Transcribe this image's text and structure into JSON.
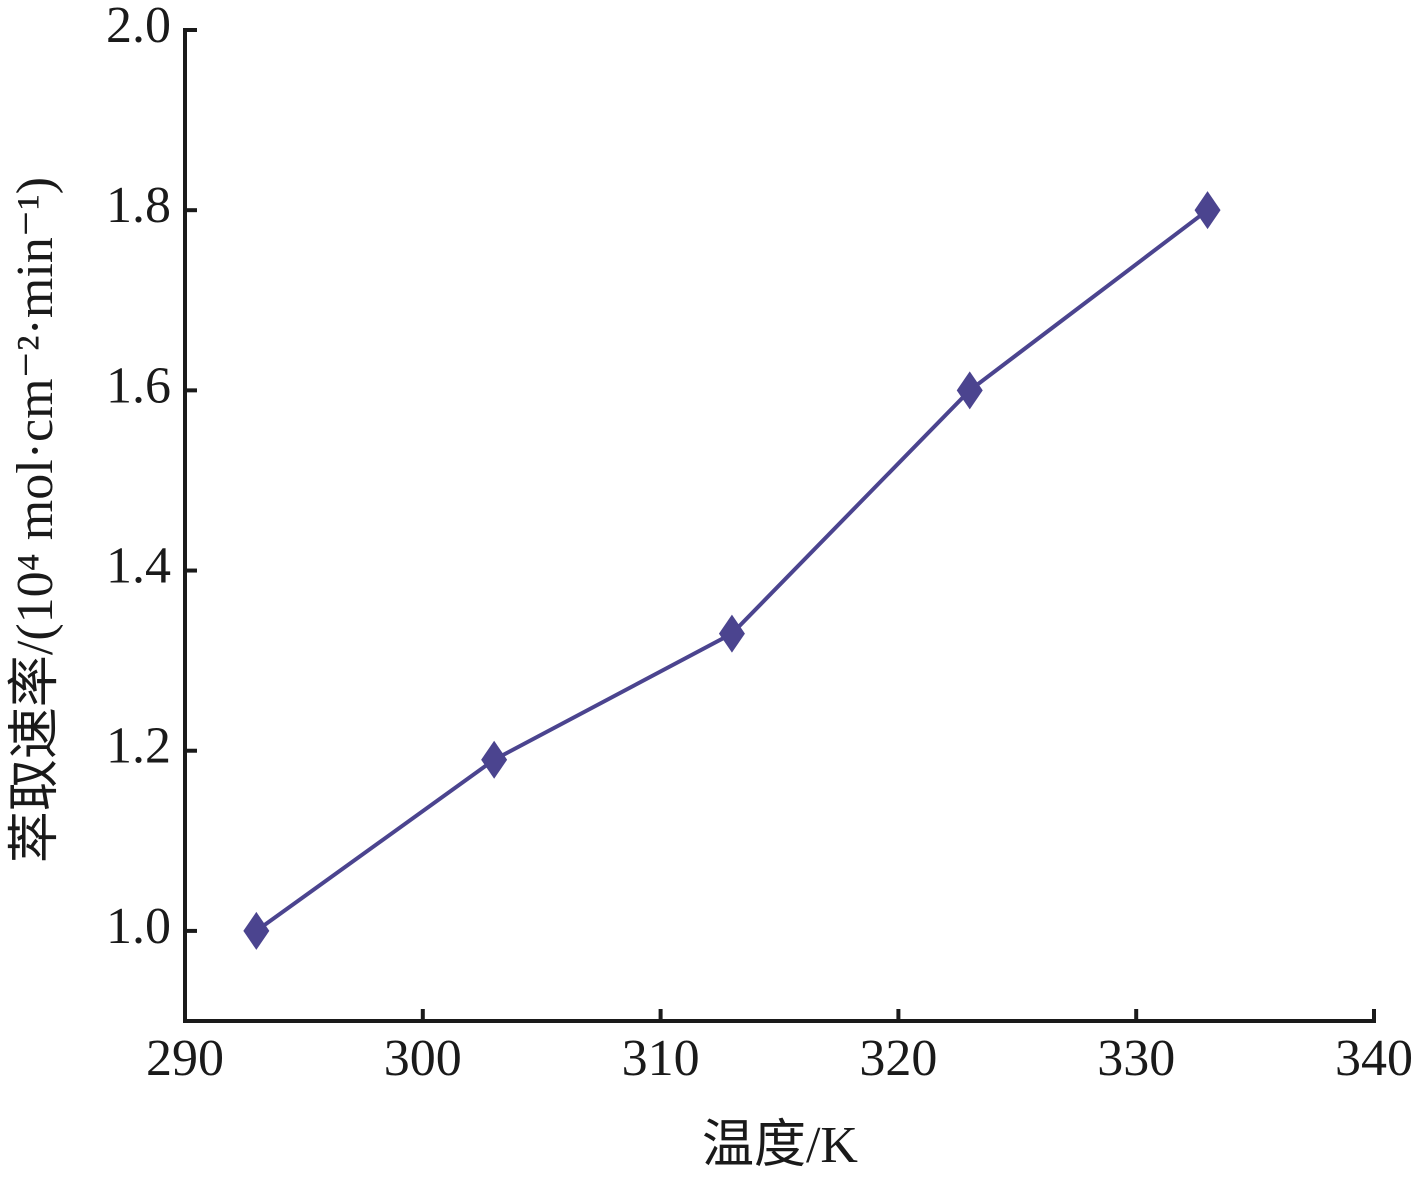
{
  "chart_data": {
    "type": "line",
    "xlabel": "温度/K",
    "ylabel": "萃取速率/(10⁴ mol·cm⁻²·min⁻¹)",
    "x": [
      293,
      303,
      313,
      323,
      333
    ],
    "series": [
      {
        "color": "#4b448f",
        "values": [
          1.0,
          1.19,
          1.33,
          1.6,
          1.8
        ]
      }
    ],
    "xlim": [
      290,
      340
    ],
    "xticks": [
      290,
      300,
      310,
      320,
      330,
      340
    ],
    "ylim": [
      0.9,
      2.0
    ],
    "yticks": [
      {
        "value": 1.0,
        "label": "1.0"
      },
      1.2,
      1.4,
      1.6,
      1.8,
      {
        "value": 2.0,
        "label": "2.0"
      }
    ],
    "grid": false,
    "marker": "diamond"
  }
}
